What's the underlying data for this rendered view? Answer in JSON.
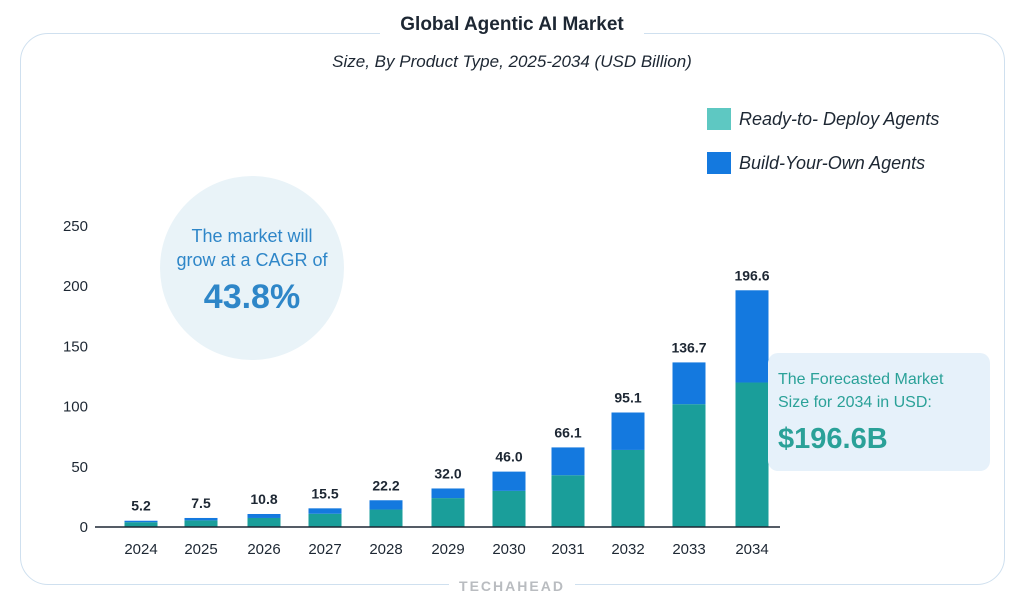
{
  "chart_data": {
    "type": "bar",
    "stacked": true,
    "title": "Global Agentic AI Market",
    "subtitle": "Size, By Product Type, 2025-2034 (USD Billion)",
    "categories": [
      "2024",
      "2025",
      "2026",
      "2027",
      "2028",
      "2029",
      "2030",
      "2031",
      "2032",
      "2033",
      "2034"
    ],
    "series": [
      {
        "name": "Ready-to- Deploy Agents",
        "color": "#1a9e9a",
        "values": [
          4.0,
          5.5,
          7.5,
          11.0,
          14.5,
          24.0,
          30.0,
          43.0,
          64.0,
          102.0,
          120.0
        ]
      },
      {
        "name": "Build-Your-Own Agents",
        "color": "#1479df",
        "values": [
          1.2,
          2.0,
          3.3,
          4.5,
          7.7,
          8.0,
          16.0,
          23.1,
          31.1,
          34.7,
          76.6
        ]
      }
    ],
    "totals": [
      "5.2",
      "7.5",
      "10.8",
      "15.5",
      "22.2",
      "32.0",
      "46.0",
      "66.1",
      "95.1",
      "136.7",
      "196.6"
    ],
    "y_ticks": [
      "0",
      "50",
      "100",
      "150",
      "200",
      "250"
    ],
    "ylim": [
      0,
      250
    ],
    "legend_placement": "top-right"
  },
  "legend": {
    "swatch_colors": [
      "#5ec8c2",
      "#1479df"
    ]
  },
  "cagr_note": {
    "text_line1": "The market will",
    "text_line2": "grow at a CAGR of",
    "value": "43.8%"
  },
  "forecast_note": {
    "text_line1": "The Forecasted Market",
    "text_line2": "Size for 2034 in USD:",
    "value": "$196.6B"
  },
  "watermark": "TECHAHEAD"
}
